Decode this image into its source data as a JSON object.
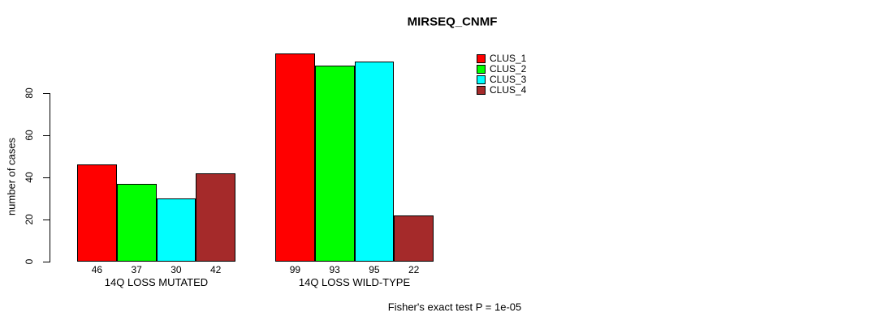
{
  "title": "MIRSEQ_CNMF",
  "y_axis": {
    "label": "number of cases",
    "ticks": [
      "0",
      "20",
      "40",
      "60",
      "80"
    ]
  },
  "footnote": "Fisher's exact test P = 1e-05",
  "colors": {
    "background": "#FFFFFF",
    "axis": "#000000",
    "clus_1": "#FF0000",
    "clus_2": "#00FF00",
    "clus_3": "#00FFFF",
    "clus_4": "#A52A2A"
  },
  "chart_data": {
    "type": "bar",
    "title": "MIRSEQ_CNMF",
    "xlabel": "",
    "ylabel": "number of cases",
    "categories": [
      "14Q LOSS MUTATED",
      "14Q LOSS WILD-TYPE"
    ],
    "series": [
      {
        "name": "CLUS_1",
        "color": "#FF0000",
        "values": [
          46,
          99
        ]
      },
      {
        "name": "CLUS_2",
        "color": "#00FF00",
        "values": [
          37,
          93
        ]
      },
      {
        "name": "CLUS_3",
        "color": "#00FFFF",
        "values": [
          30,
          95
        ]
      },
      {
        "name": "CLUS_4",
        "color": "#A52A2A",
        "values": [
          42,
          22
        ]
      }
    ],
    "bar_value_labels": [
      [
        46,
        37,
        30,
        42
      ],
      [
        99,
        93,
        95,
        22
      ]
    ],
    "ylim": [
      0,
      105
    ],
    "yticks": [
      0,
      20,
      40,
      60,
      80
    ],
    "grid": false,
    "legend_position": "top-right",
    "annotation": "Fisher's exact test P = 1e-05"
  }
}
